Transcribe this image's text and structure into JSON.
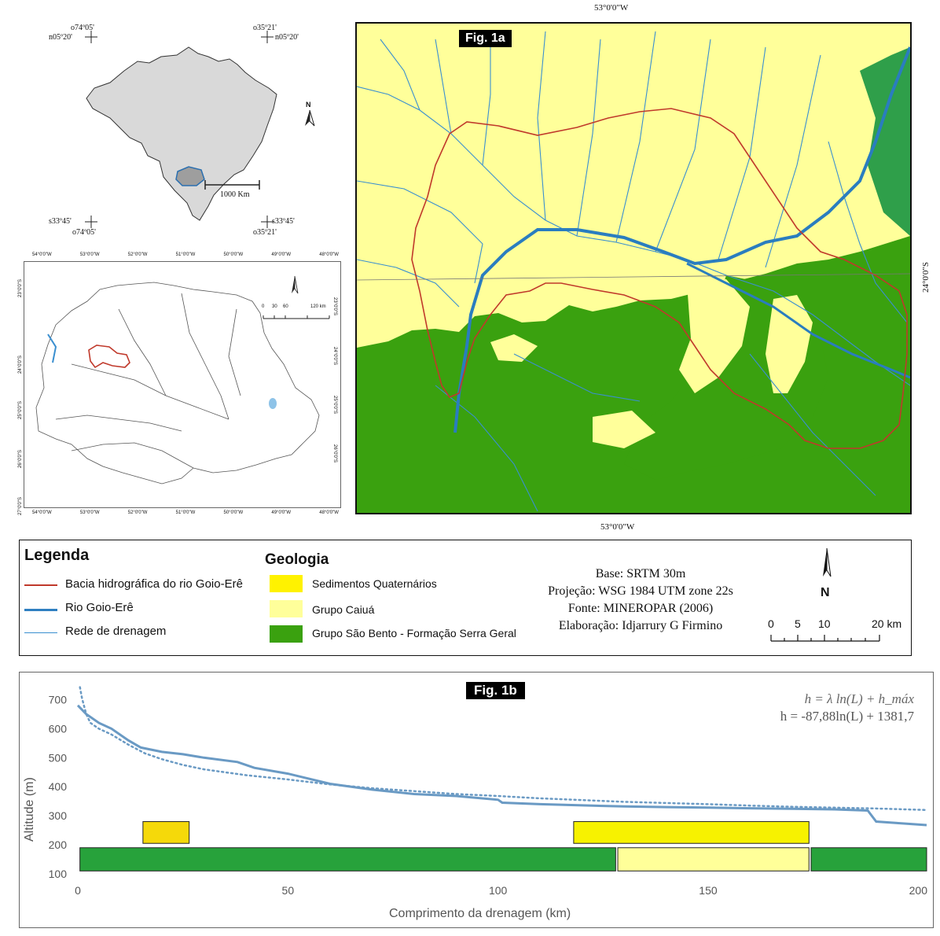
{
  "brazil_inset": {
    "coords": {
      "tl_lon": "o74º05'",
      "tl_lat": "n05º20'",
      "tr_lon": "o35º21'",
      "tr_lat": "n05º20'",
      "bl_lat": "s33º45'",
      "bl_lon": "o74º05'",
      "br_lat": "s33º45'",
      "br_lon": "o35º21'"
    },
    "north": "N",
    "scale_label": "1000 Km"
  },
  "parana_map": {
    "top_ticks": [
      "54°0'0\"W",
      "53°0'0\"W",
      "52°0'0\"W",
      "51°0'0\"W",
      "50°0'0\"W",
      "49°0'0\"W",
      "48°0'0\"W"
    ],
    "bottom_ticks": [
      "54°0'0\"W",
      "53°0'0\"W",
      "52°0'0\"W",
      "51°0'0\"W",
      "50°0'0\"W",
      "49°0'0\"W",
      "48°0'0\"W"
    ],
    "left_ticks": [
      "23°0'0\"S",
      "24°0'0\"S",
      "25°0'0\"S",
      "26°0'0\"S",
      "27°0'0\"S"
    ],
    "right_ticks": [
      "23°0'0\"S",
      "24°0'0\"S",
      "25°0'0\"S",
      "26°0'0\"S"
    ],
    "scale_ticks": [
      "0",
      "30",
      "60",
      "120 km"
    ]
  },
  "fig1a": {
    "label": "Fig. 1a",
    "top_lon": "53°0'0\"W",
    "bottom_lon": "53°0'0\"W",
    "right_lat": "24°0'0\"S"
  },
  "legend": {
    "title": "Legenda",
    "items": [
      {
        "label": "Bacia hidrográfica do rio Goio-Erê",
        "color": "#c0392b"
      },
      {
        "label": "Rio Goio-Erê",
        "color": "#2f7fc1"
      },
      {
        "label": "Rede de drenagem",
        "color": "#3a8fd0"
      }
    ],
    "geology_title": "Geologia",
    "geology": [
      {
        "label": "Sedimentos Quaternários",
        "color": "#fff200"
      },
      {
        "label": "Grupo Caiuá",
        "color": "#ffff9a"
      },
      {
        "label": "Grupo São Bento - Formação Serra Geral",
        "color": "#3aa10f"
      }
    ],
    "credits": [
      "Base: SRTM 30m",
      "Projeção: WSG 1984 UTM zone 22s",
      "Fonte: MINEROPAR (2006)",
      "Elaboração: Idjarrury G Firmino"
    ],
    "north": "N",
    "scale_ticks": [
      "0",
      "5",
      "10",
      "20 km"
    ]
  },
  "chart_data": {
    "type": "line",
    "label": "Fig. 1b",
    "equation_general": "h = λ ln(L) + h_máx",
    "equation_fit": "h = -87,88ln(L) + 1381,7",
    "xlabel": "Comprimento da drenagem (km)",
    "ylabel": "Altitude (m)",
    "xlim": [
      0,
      202
    ],
    "ylim": [
      100,
      750
    ],
    "x_ticks": [
      0,
      50,
      100,
      150,
      200
    ],
    "y_ticks": [
      100,
      200,
      300,
      400,
      500,
      600,
      700
    ],
    "series": [
      {
        "style": "solid",
        "color": "#6a9ac4",
        "x": [
          0,
          2,
          5,
          8,
          12,
          15,
          20,
          25,
          30,
          38,
          42,
          50,
          60,
          70,
          80,
          90,
          100,
          101,
          110,
          120,
          130,
          140,
          150,
          160,
          170,
          180,
          188,
          190,
          195,
          202
        ],
        "y": [
          680,
          650,
          620,
          600,
          560,
          535,
          520,
          512,
          500,
          485,
          465,
          445,
          410,
          390,
          375,
          368,
          355,
          345,
          340,
          336,
          332,
          330,
          328,
          326,
          324,
          322,
          318,
          280,
          275,
          268
        ]
      },
      {
        "style": "dotted",
        "color": "#6a9ac4",
        "x": [
          0.5,
          1,
          2,
          3,
          5,
          8,
          12,
          16,
          20,
          25,
          30,
          40,
          50,
          60,
          70,
          80,
          90,
          100,
          110,
          120,
          130,
          140,
          150,
          160,
          170,
          180,
          190,
          202
        ],
        "y": [
          743,
          705,
          650,
          620,
          600,
          580,
          545,
          515,
          495,
          475,
          460,
          440,
          425,
          408,
          395,
          385,
          375,
          368,
          360,
          354,
          348,
          344,
          340,
          335,
          331,
          328,
          325,
          320
        ]
      }
    ],
    "geology_bars": [
      {
        "unit": "Sedimentos Quaternários",
        "color": "#f5d90a",
        "x0": 15.5,
        "x1": 26.5,
        "y0": 205,
        "y1": 280
      },
      {
        "unit": "Sedimentos Quaternários",
        "color": "#f7f200",
        "x0": 118,
        "x1": 174,
        "y0": 205,
        "y1": 280
      },
      {
        "unit": "Grupo São Bento - Formação Serra Geral",
        "color": "#27a23b",
        "x0": 0.5,
        "x1": 128,
        "y0": 110,
        "y1": 190
      },
      {
        "unit": "Grupo Caiuá",
        "color": "#ffff99",
        "x0": 128.5,
        "x1": 174,
        "y0": 110,
        "y1": 190
      },
      {
        "unit": "Grupo São Bento - Formação Serra Geral",
        "color": "#27a23b",
        "x0": 174.5,
        "x1": 202,
        "y0": 110,
        "y1": 190
      }
    ]
  }
}
